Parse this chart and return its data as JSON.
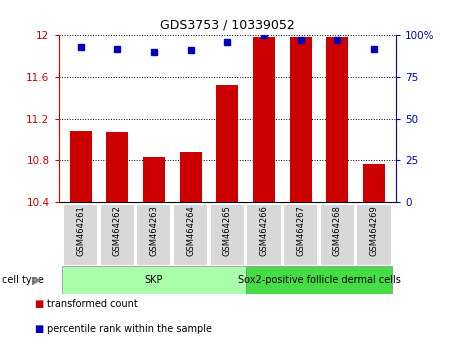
{
  "title": "GDS3753 / 10339052",
  "categories": [
    "GSM464261",
    "GSM464262",
    "GSM464263",
    "GSM464264",
    "GSM464265",
    "GSM464266",
    "GSM464267",
    "GSM464268",
    "GSM464269"
  ],
  "transformed_counts": [
    11.08,
    11.07,
    10.83,
    10.88,
    11.52,
    11.98,
    11.98,
    11.98,
    10.76
  ],
  "percentile_ranks": [
    93,
    92,
    90,
    91,
    96,
    100,
    97,
    97,
    92
  ],
  "bar_color": "#cc0000",
  "dot_color": "#0000bb",
  "ylim_left": [
    10.4,
    12.0
  ],
  "ylim_right": [
    0,
    100
  ],
  "yticks_left": [
    10.4,
    10.8,
    11.2,
    11.6,
    12.0
  ],
  "ytick_labels_left": [
    "10.4",
    "10.8",
    "11.2",
    "11.6",
    "12"
  ],
  "yticks_right": [
    0,
    25,
    50,
    75,
    100
  ],
  "ytick_labels_right": [
    "0",
    "25",
    "50",
    "75",
    "100%"
  ],
  "cell_types": [
    {
      "label": "SKP",
      "color": "#aaffaa",
      "start": 0,
      "end": 5
    },
    {
      "label": "Sox2-positive follicle dermal cells",
      "color": "#44dd44",
      "start": 5,
      "end": 9
    }
  ],
  "cell_type_label": "cell type",
  "legend_items": [
    {
      "label": "transformed count",
      "color": "#cc0000"
    },
    {
      "label": "percentile rank within the sample",
      "color": "#0000bb"
    }
  ]
}
